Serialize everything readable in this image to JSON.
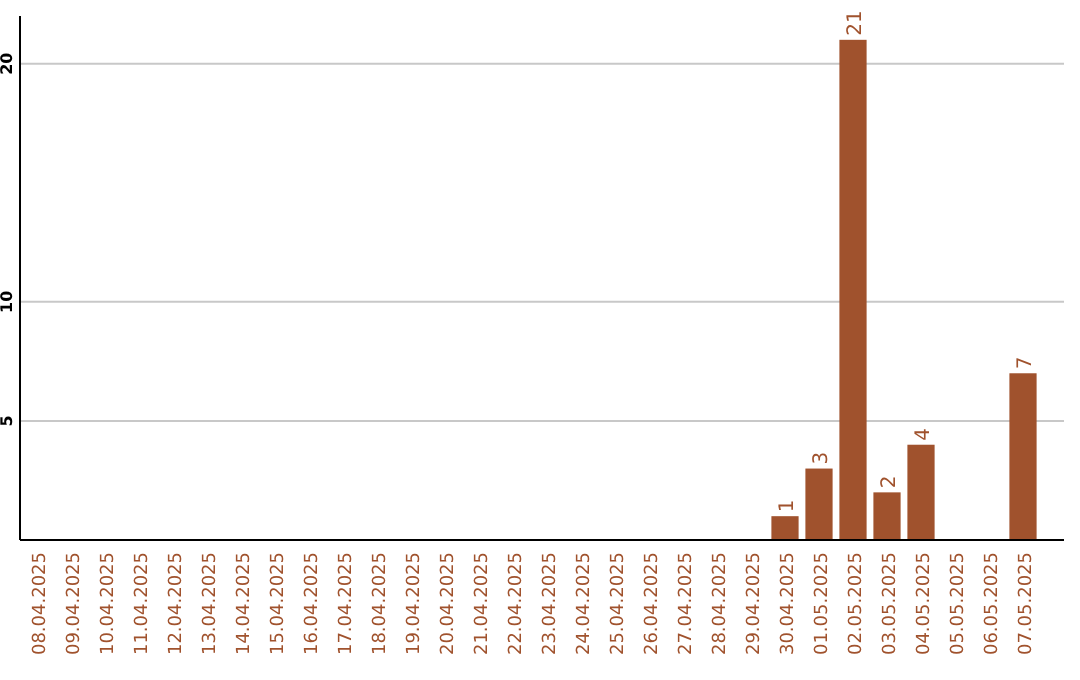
{
  "chart_data": {
    "type": "bar",
    "categories": [
      "08.04.2025",
      "09.04.2025",
      "10.04.2025",
      "11.04.2025",
      "12.04.2025",
      "13.04.2025",
      "14.04.2025",
      "15.04.2025",
      "16.04.2025",
      "17.04.2025",
      "18.04.2025",
      "19.04.2025",
      "20.04.2025",
      "21.04.2025",
      "22.04.2025",
      "23.04.2025",
      "24.04.2025",
      "25.04.2025",
      "26.04.2025",
      "27.04.2025",
      "28.04.2025",
      "29.04.2025",
      "30.04.2025",
      "01.05.2025",
      "02.05.2025",
      "03.05.2025",
      "04.05.2025",
      "05.05.2025",
      "06.05.2025",
      "07.05.2025"
    ],
    "values": [
      0,
      0,
      0,
      0,
      0,
      0,
      0,
      0,
      0,
      0,
      0,
      0,
      0,
      0,
      0,
      0,
      0,
      0,
      0,
      0,
      0,
      0,
      1,
      3,
      21,
      2,
      4,
      0,
      0,
      7
    ],
    "value_labels": [
      null,
      null,
      null,
      null,
      null,
      null,
      null,
      null,
      null,
      null,
      null,
      null,
      null,
      null,
      null,
      null,
      null,
      null,
      null,
      null,
      null,
      null,
      "1",
      "3",
      "21",
      "2",
      "4",
      null,
      null,
      "7"
    ],
    "color": "#a0522d",
    "ylim": [
      0,
      22
    ],
    "yticks": [
      5,
      10,
      20
    ],
    "grid": "y"
  }
}
